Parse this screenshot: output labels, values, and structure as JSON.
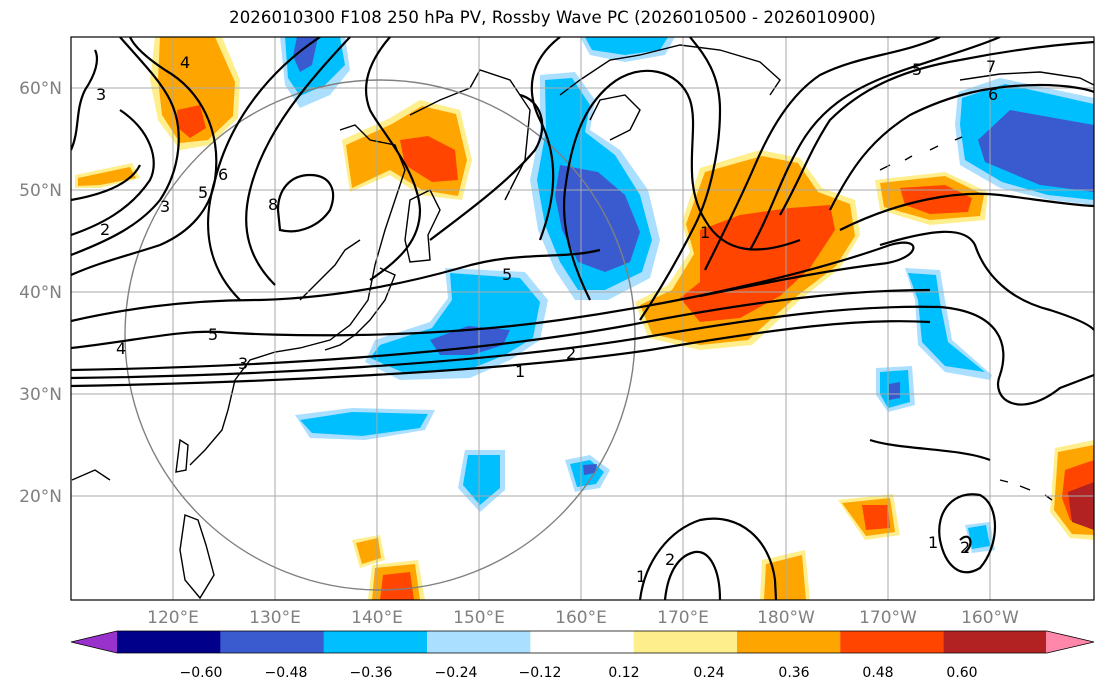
{
  "title": "2026010300 F108 250 hPa PV, Rossby Wave PC (2026010500 - 2026010900)",
  "map": {
    "lat_labels": [
      "60°N",
      "50°N",
      "40°N",
      "30°N",
      "20°N"
    ],
    "lon_labels": [
      "120°E",
      "130°E",
      "140°E",
      "150°E",
      "160°E",
      "170°E",
      "180°W",
      "170°W",
      "160°W"
    ],
    "extent": {
      "lon_min": 110,
      "lon_max": 210,
      "lat_min": 10,
      "lat_max": 65
    },
    "pv_contour_labels": [
      "1",
      "2",
      "3",
      "4",
      "5",
      "6",
      "7",
      "8"
    ]
  },
  "colorbar": {
    "ticks": [
      "−0.60",
      "−0.48",
      "−0.36",
      "−0.24",
      "−0.12",
      "0.12",
      "0.24",
      "0.36",
      "0.48",
      "0.60"
    ],
    "colors": [
      "#9932cc",
      "#00008b",
      "#3a5bd0",
      "#00bfff",
      "#abdfff",
      "#ffffff",
      "#ffee8c",
      "#ffa500",
      "#ff4500",
      "#b22222",
      "#ff88aa"
    ]
  },
  "colors": {
    "neg_strong": "#3a5bd0",
    "neg_mid": "#00bfff",
    "neg_weak": "#abdfff",
    "pos_weak": "#ffee8c",
    "pos_mid": "#ffa500",
    "pos_strong": "#ff4500",
    "pos_max": "#b22222",
    "grid": "#a9a9a9",
    "frame": "#000000"
  }
}
